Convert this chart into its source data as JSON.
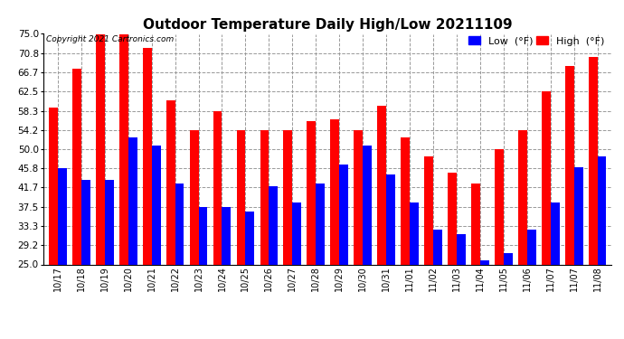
{
  "title": "Outdoor Temperature Daily High/Low 20211109",
  "copyright": "Copyright 2021 Cartronics.com",
  "legend_low": "Low  (°F)",
  "legend_high": "High  (°F)",
  "categories": [
    "10/17",
    "10/18",
    "10/19",
    "10/20",
    "10/21",
    "10/22",
    "10/23",
    "10/24",
    "10/25",
    "10/26",
    "10/27",
    "10/28",
    "10/29",
    "10/30",
    "10/31",
    "11/01",
    "11/02",
    "11/03",
    "11/04",
    "11/05",
    "11/06",
    "11/07",
    "11/07",
    "11/08"
  ],
  "high_values": [
    59.0,
    67.5,
    75.0,
    75.0,
    72.0,
    60.5,
    54.2,
    58.3,
    54.2,
    54.2,
    54.2,
    56.0,
    56.5,
    54.2,
    59.5,
    52.5,
    48.5,
    45.0,
    42.5,
    50.0,
    54.2,
    62.5,
    68.0,
    70.0
  ],
  "low_values": [
    45.8,
    43.3,
    43.3,
    52.5,
    50.8,
    42.5,
    37.5,
    37.5,
    36.5,
    42.0,
    38.5,
    42.5,
    46.7,
    50.8,
    44.5,
    38.5,
    32.5,
    31.5,
    25.8,
    27.5,
    32.5,
    38.5,
    46.0,
    48.5
  ],
  "ylim_min": 25.0,
  "ylim_max": 75.0,
  "yticks": [
    25.0,
    29.2,
    33.3,
    37.5,
    41.7,
    45.8,
    50.0,
    54.2,
    58.3,
    62.5,
    66.7,
    70.8,
    75.0
  ],
  "high_color": "#ff0000",
  "low_color": "#0000ff",
  "background_color": "#ffffff",
  "grid_color": "#999999",
  "title_fontsize": 11,
  "bar_width": 0.38
}
